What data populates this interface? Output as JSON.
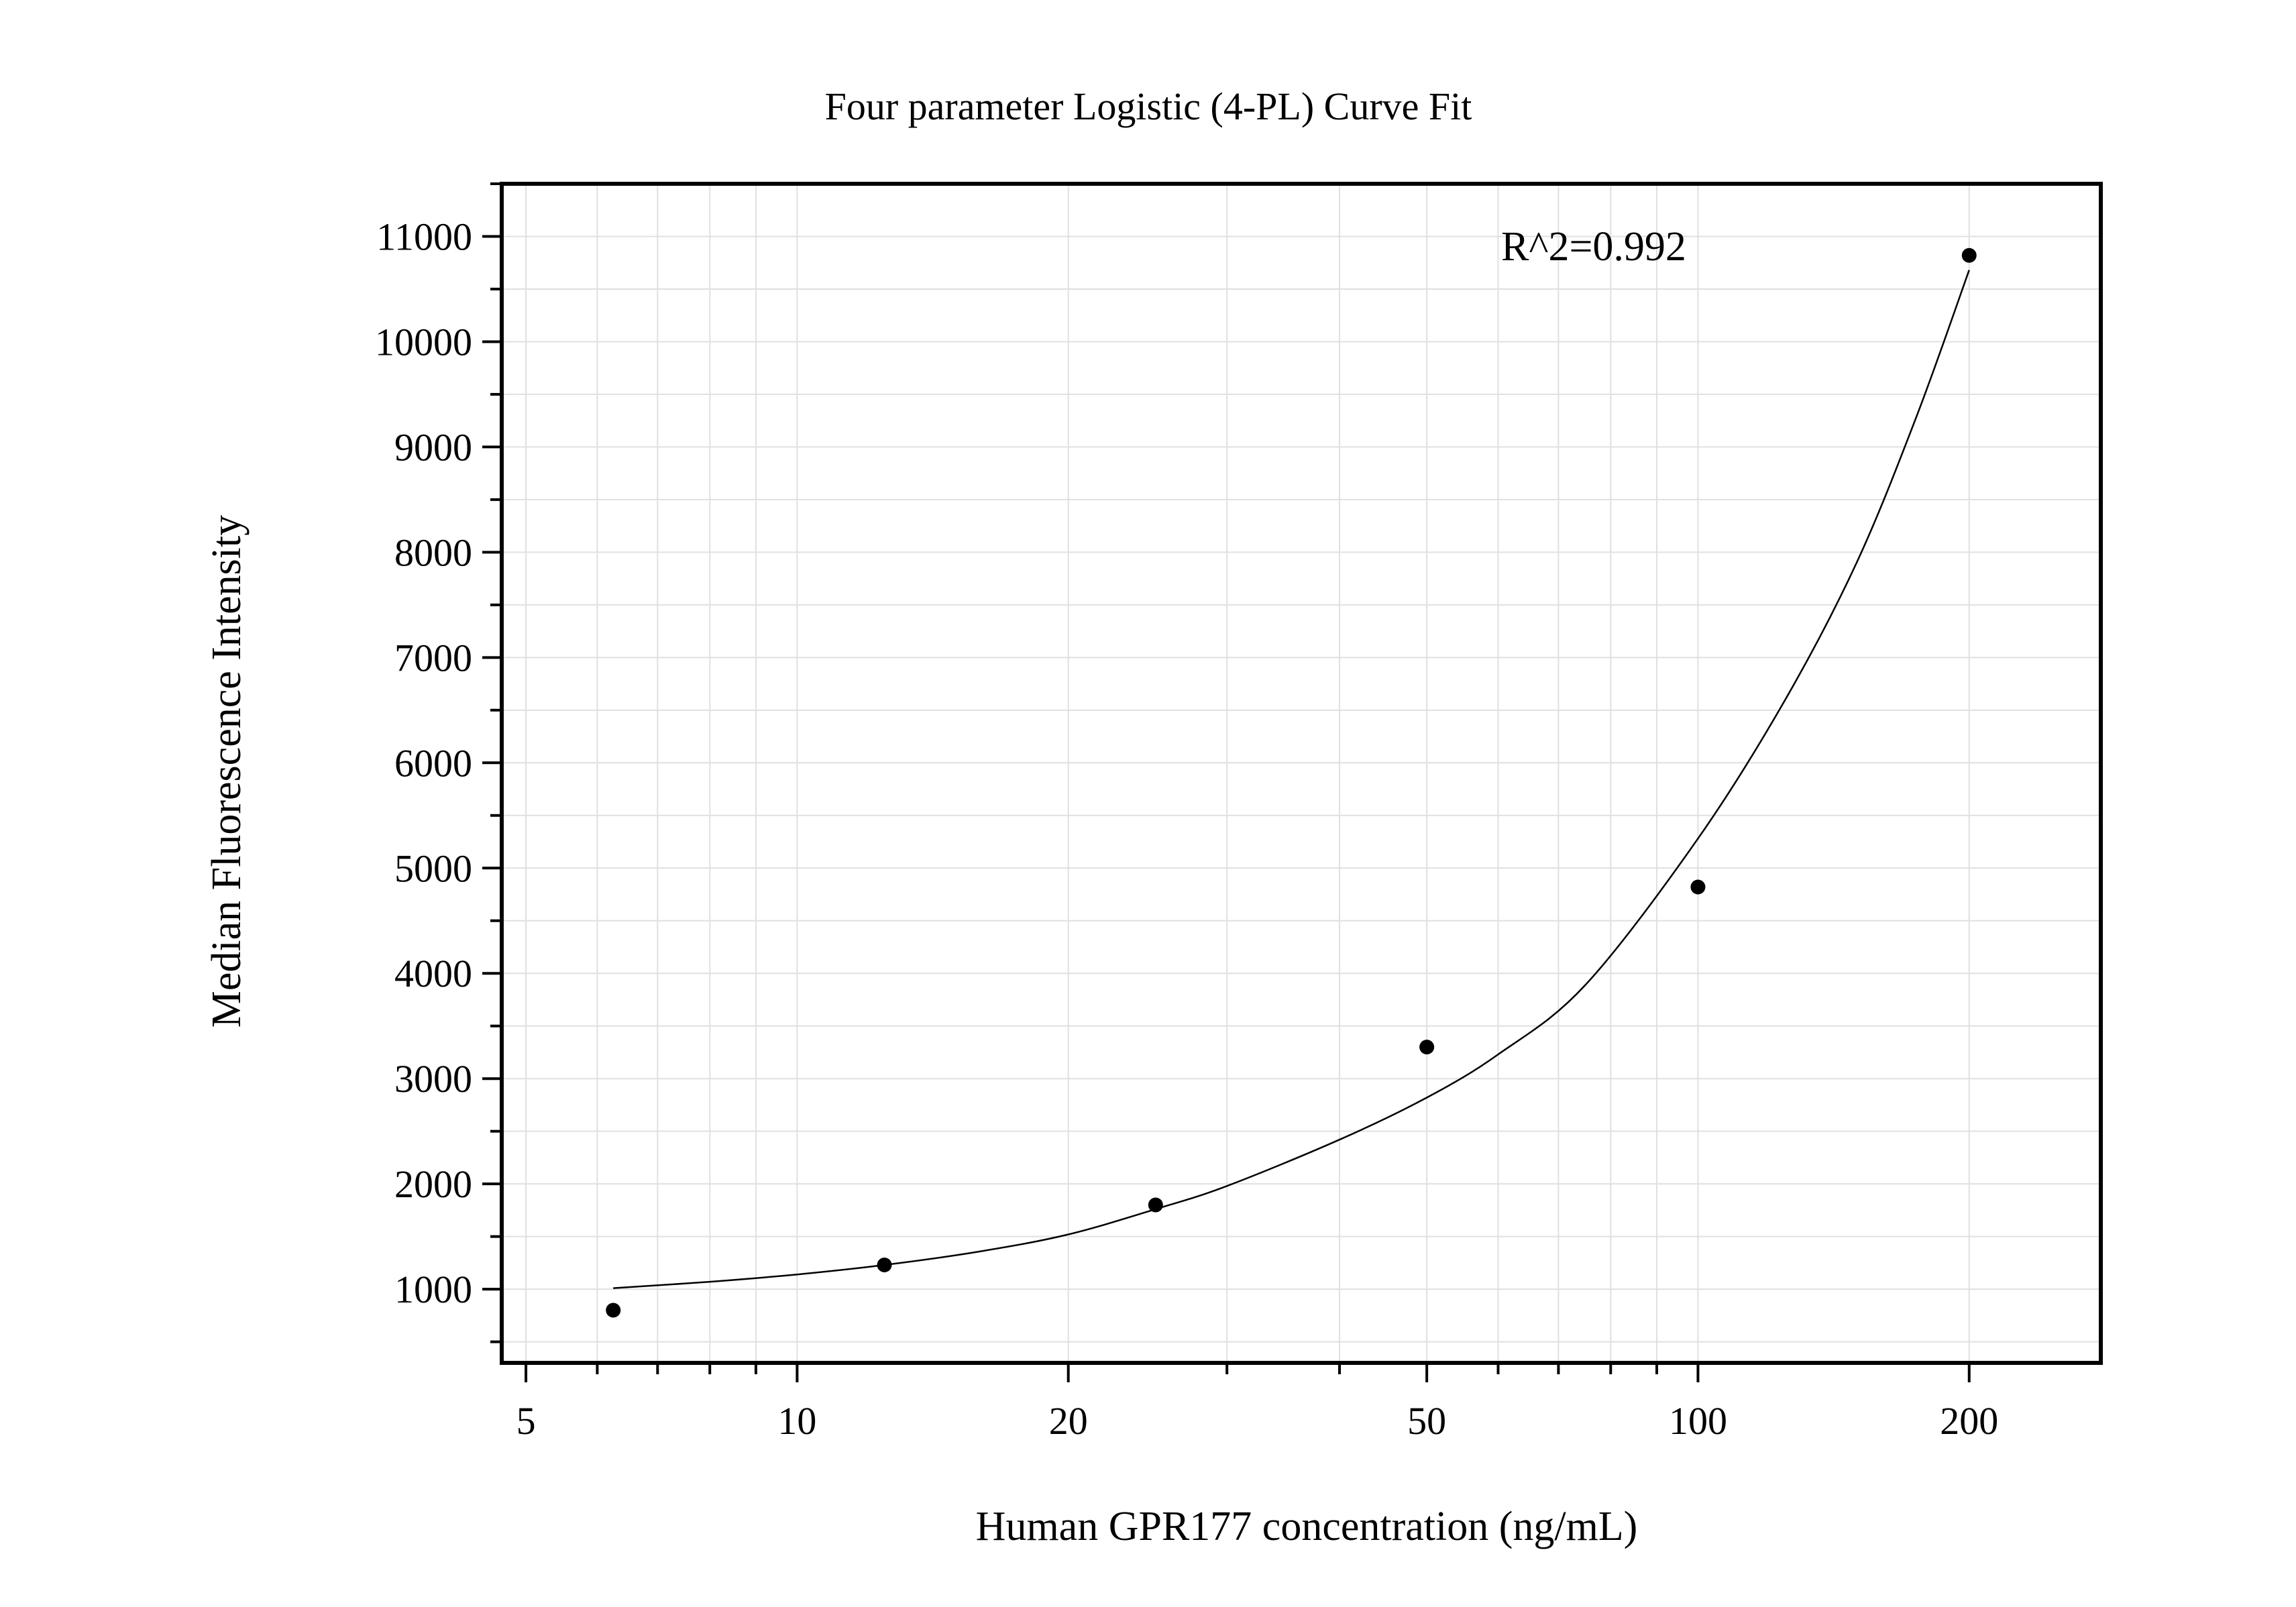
{
  "chart_data": {
    "type": "scatter",
    "title": "Four parameter Logistic (4-PL) Curve Fit",
    "xlabel": "Human GPR177 concentration (ng/mL)",
    "ylabel": "Median Fluorescence Intensity",
    "x_scale": "log",
    "xlim": [
      4.7,
      280
    ],
    "ylim": [
      300,
      11500
    ],
    "x_ticks": [
      5,
      10,
      20,
      50,
      100,
      200
    ],
    "x_tick_labels": [
      "5",
      "10",
      "20",
      "50",
      "100",
      "200"
    ],
    "y_ticks": [
      1000,
      2000,
      3000,
      4000,
      5000,
      6000,
      7000,
      8000,
      9000,
      10000,
      11000
    ],
    "y_tick_labels": [
      "1000",
      "2000",
      "3000",
      "4000",
      "5000",
      "6000",
      "7000",
      "8000",
      "9000",
      "10000",
      "11000"
    ],
    "grid": true,
    "annotation": "R^2=0.992",
    "series": [
      {
        "type": "scatter",
        "x": [
          6.25,
          12.5,
          25,
          50,
          100,
          200
        ],
        "y": [
          800,
          1230,
          1800,
          3300,
          4820,
          10820
        ]
      },
      {
        "type": "line",
        "x": [
          6.25,
          8,
          10,
          12.5,
          16,
          20,
          25,
          30,
          40,
          50,
          60,
          75,
          100,
          125,
          150,
          175,
          200
        ],
        "y": [
          1010,
          1070,
          1140,
          1230,
          1360,
          1520,
          1760,
          1980,
          2420,
          2820,
          3230,
          3890,
          5280,
          6600,
          7900,
          9300,
          10680
        ]
      }
    ],
    "colors": {
      "points": "#000000",
      "curve": "#000000",
      "grid": "#e0e0e0",
      "frame": "#000000"
    }
  }
}
